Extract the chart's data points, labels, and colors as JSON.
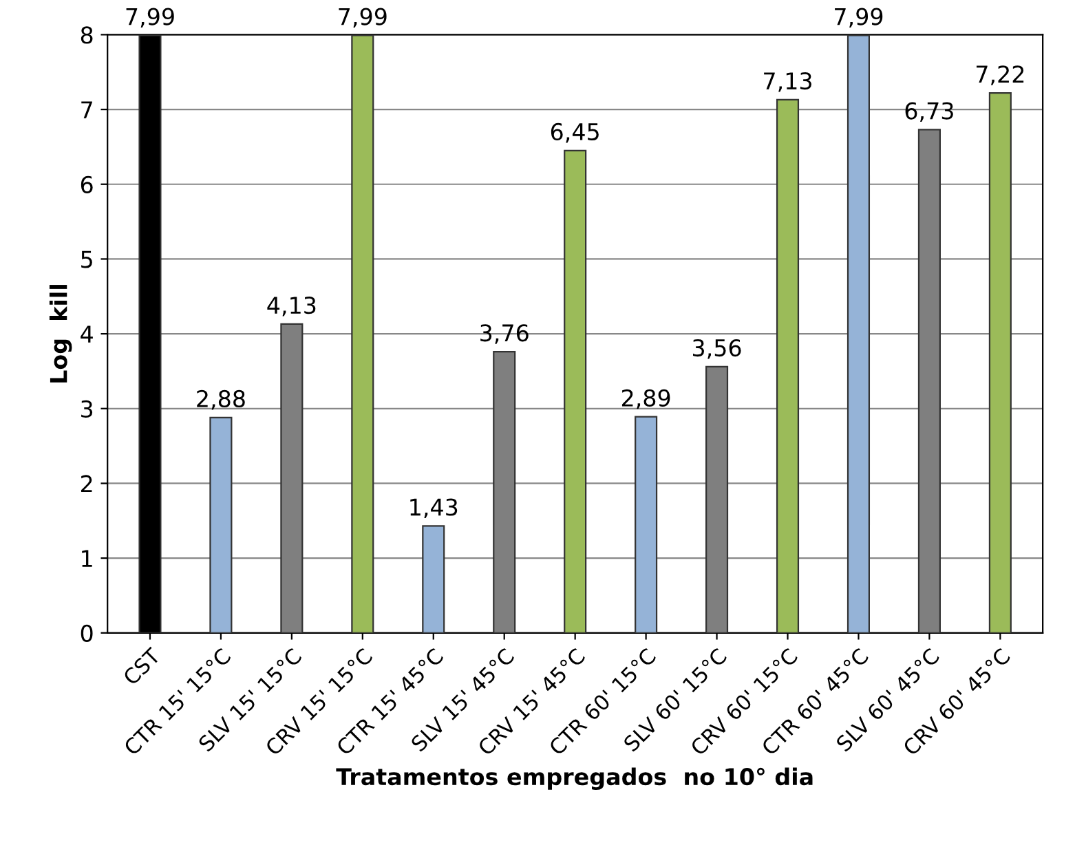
{
  "chart_data": {
    "type": "bar",
    "xlabel": "Tratamentos empregados  no 10° dia",
    "ylabel": "Log  kill",
    "categories": [
      "CST",
      "CTR 15' 15°C",
      "SLV 15' 15°C",
      "CRV 15' 15°C",
      "CTR 15' 45°C",
      "SLV 15' 45°C",
      "CRV 15' 45°C",
      "CTR 60' 15°C",
      "SLV 60' 15°C",
      "CRV 60' 15°C",
      "CTR 60' 45°C",
      "SLV 60' 45°C",
      "CRV 60' 45°C"
    ],
    "values": [
      7.99,
      2.88,
      4.13,
      7.99,
      1.43,
      3.76,
      6.45,
      2.89,
      3.56,
      7.13,
      7.99,
      6.73,
      7.22
    ],
    "colors": [
      "#000000",
      "#95b3d7",
      "#7f7f7f",
      "#9bbb59",
      "#95b3d7",
      "#7f7f7f",
      "#9bbb59",
      "#95b3d7",
      "#7f7f7f",
      "#9bbb59",
      "#95b3d7",
      "#7f7f7f",
      "#9bbb59"
    ],
    "value_labels": [
      "7,99",
      "2,88",
      "4,13",
      "7,99",
      "1,43",
      "3,76",
      "6,45",
      "2,89",
      "3,56",
      "7,13",
      "7,99",
      "6,73",
      "7,22"
    ],
    "ylim": [
      0,
      8
    ],
    "yticks": [
      0,
      1,
      2,
      3,
      4,
      5,
      6,
      7,
      8
    ],
    "grid": "y",
    "legend": false
  }
}
